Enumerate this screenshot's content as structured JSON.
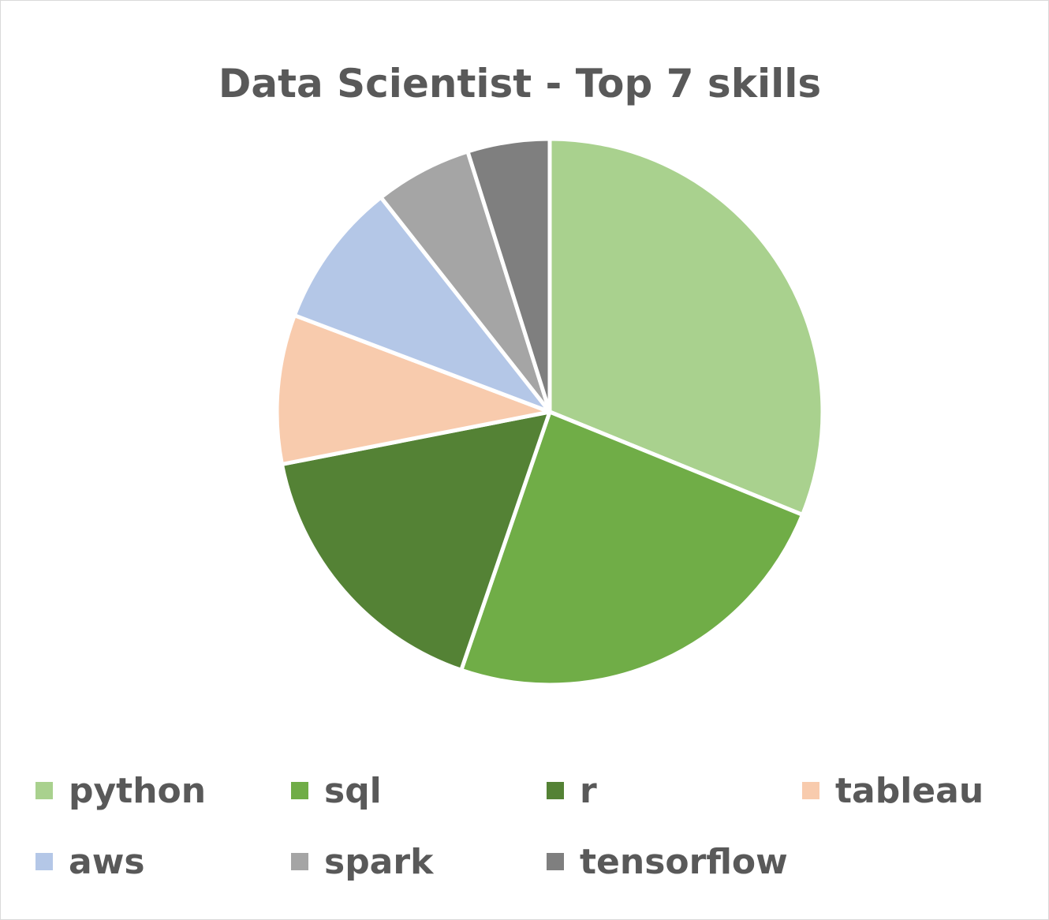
{
  "chart_data": {
    "type": "pie",
    "title": "Data Scientist - Top 7 skills",
    "categories": [
      "python",
      "sql",
      "r",
      "tableau",
      "aws",
      "spark",
      "tensorflow"
    ],
    "values": [
      31.4,
      24.3,
      16.8,
      8.9,
      8.7,
      5.8,
      4.9
    ],
    "colors": [
      "#a9d18e",
      "#70ad47",
      "#548235",
      "#f8cbad",
      "#b4c7e7",
      "#a5a5a5",
      "#7f7f7f"
    ],
    "legend_position": "bottom",
    "start_angle": "top, clockwise"
  }
}
